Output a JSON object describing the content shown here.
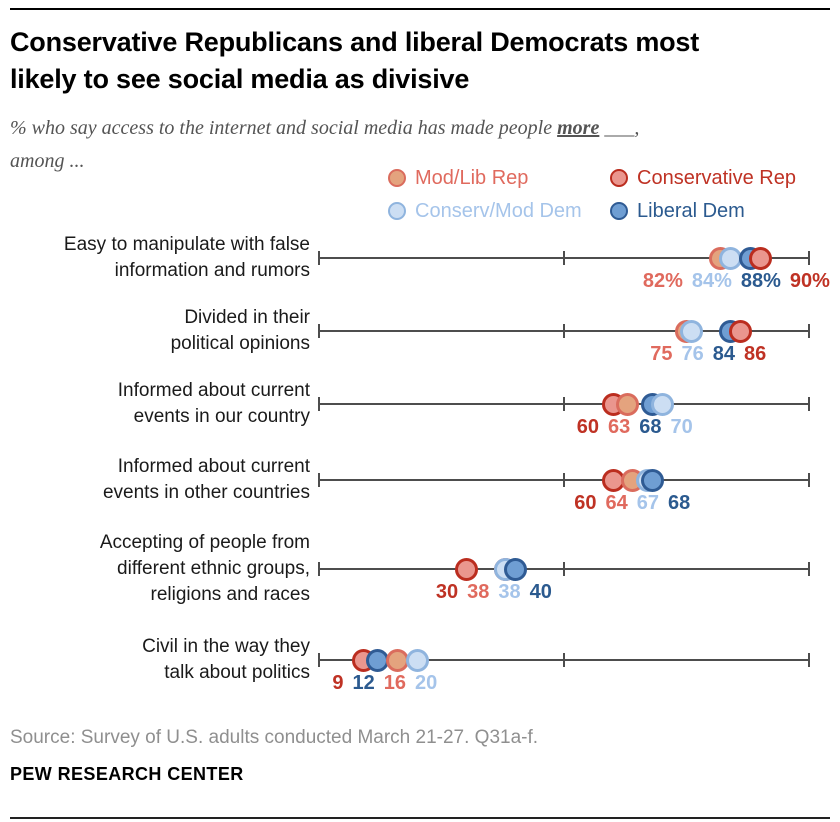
{
  "header": {
    "title_lines": [
      "Conservative Republicans and liberal Democrats most",
      "likely to see social media as divisive"
    ],
    "subtitle_prefix": "% who say access to the internet and social media has made people ",
    "subtitle_emphasis": "more",
    "subtitle_blank": " ___,",
    "subtitle_line2": "among ..."
  },
  "legend": {
    "items": [
      {
        "id": "mod_lib_rep",
        "label": "Mod/Lib Rep"
      },
      {
        "id": "conservative_rep",
        "label": "Conservative Rep"
      },
      {
        "id": "conserv_mod_dem",
        "label": "Conserv/Mod Dem"
      },
      {
        "id": "liberal_dem",
        "label": "Liberal Dem"
      }
    ]
  },
  "colors": {
    "mod_lib_rep": {
      "fill": "#E4A37E",
      "stroke": "#DA6C5D",
      "text": "#E06A5E"
    },
    "conservative_rep": {
      "fill": "#EA968E",
      "stroke": "#BB2D1F",
      "text": "#BF3224"
    },
    "conserv_mod_dem": {
      "fill": "#CCDEF3",
      "stroke": "#8FB4DE",
      "text": "#A5C4EA"
    },
    "liberal_dem": {
      "fill": "#6F9ED3",
      "stroke": "#2F5B94",
      "text": "#2B5A8F"
    }
  },
  "chart_data": {
    "type": "dot_plot",
    "x_range": [
      0,
      100
    ],
    "axis_ticks": [
      0,
      50,
      100
    ],
    "grid": false,
    "legend_position": "top-right",
    "rows": [
      {
        "label_lines": [
          "Easy to manipulate with false",
          "information and rumors"
        ],
        "dots": [
          {
            "party": "mod_lib_rep",
            "value": 82
          },
          {
            "party": "conserv_mod_dem",
            "value": 84
          },
          {
            "party": "liberal_dem",
            "value": 88
          },
          {
            "party": "conservative_rep",
            "value": 90
          }
        ],
        "value_labels": [
          {
            "party": "mod_lib_rep",
            "text": "82%"
          },
          {
            "party": "conserv_mod_dem",
            "text": "84%"
          },
          {
            "party": "liberal_dem",
            "text": "88%"
          },
          {
            "party": "conservative_rep",
            "text": "90%"
          }
        ]
      },
      {
        "label_lines": [
          "Divided in their",
          "political opinions"
        ],
        "dots": [
          {
            "party": "mod_lib_rep",
            "value": 75
          },
          {
            "party": "conserv_mod_dem",
            "value": 76
          },
          {
            "party": "liberal_dem",
            "value": 84
          },
          {
            "party": "conservative_rep",
            "value": 86
          }
        ],
        "value_labels": [
          {
            "party": "mod_lib_rep",
            "text": "75"
          },
          {
            "party": "conserv_mod_dem",
            "text": "76"
          },
          {
            "party": "liberal_dem",
            "text": "84"
          },
          {
            "party": "conservative_rep",
            "text": "86"
          }
        ]
      },
      {
        "label_lines": [
          "Informed about current",
          "events in our country"
        ],
        "dots": [
          {
            "party": "conservative_rep",
            "value": 60
          },
          {
            "party": "mod_lib_rep",
            "value": 63
          },
          {
            "party": "liberal_dem",
            "value": 68
          },
          {
            "party": "conserv_mod_dem",
            "value": 70
          }
        ],
        "value_labels": [
          {
            "party": "conservative_rep",
            "text": "60"
          },
          {
            "party": "mod_lib_rep",
            "text": "63"
          },
          {
            "party": "liberal_dem",
            "text": "68"
          },
          {
            "party": "conserv_mod_dem",
            "text": "70"
          }
        ]
      },
      {
        "label_lines": [
          "Informed about current",
          "events in other countries"
        ],
        "dots": [
          {
            "party": "conservative_rep",
            "value": 60
          },
          {
            "party": "mod_lib_rep",
            "value": 64
          },
          {
            "party": "conserv_mod_dem",
            "value": 67
          },
          {
            "party": "liberal_dem",
            "value": 68
          }
        ],
        "value_labels": [
          {
            "party": "conservative_rep",
            "text": "60"
          },
          {
            "party": "mod_lib_rep",
            "text": "64"
          },
          {
            "party": "conserv_mod_dem",
            "text": "67"
          },
          {
            "party": "liberal_dem",
            "text": "68"
          }
        ]
      },
      {
        "label_lines": [
          "Accepting of people from",
          "different ethnic groups,",
          "religions and races"
        ],
        "dots": [
          {
            "party": "conservative_rep",
            "value": 30
          },
          {
            "party": "mod_lib_rep",
            "value": 38
          },
          {
            "party": "conserv_mod_dem",
            "value": 38
          },
          {
            "party": "liberal_dem",
            "value": 40
          }
        ],
        "value_labels": [
          {
            "party": "conservative_rep",
            "text": "30"
          },
          {
            "party": "mod_lib_rep",
            "text": "38"
          },
          {
            "party": "conserv_mod_dem",
            "text": "38"
          },
          {
            "party": "liberal_dem",
            "text": "40"
          }
        ]
      },
      {
        "label_lines": [
          "Civil in the way they",
          "talk about politics"
        ],
        "dots": [
          {
            "party": "conservative_rep",
            "value": 9
          },
          {
            "party": "liberal_dem",
            "value": 12
          },
          {
            "party": "mod_lib_rep",
            "value": 16
          },
          {
            "party": "conserv_mod_dem",
            "value": 20
          }
        ],
        "value_labels": [
          {
            "party": "conservative_rep",
            "text": "9"
          },
          {
            "party": "liberal_dem",
            "text": "12"
          },
          {
            "party": "mod_lib_rep",
            "text": "16"
          },
          {
            "party": "conserv_mod_dem",
            "text": "20"
          }
        ]
      }
    ]
  },
  "footer": {
    "source": "Source: Survey of U.S. adults conducted March 21-27. Q31a-f.",
    "brand": "PEW RESEARCH CENTER"
  }
}
